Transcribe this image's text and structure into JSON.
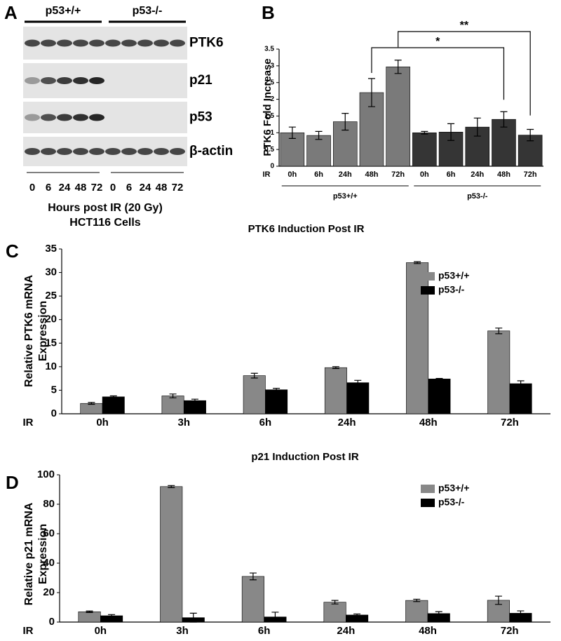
{
  "blot": {
    "panel_label": "A",
    "groups": [
      "p53+/+",
      "p53-/-"
    ],
    "rows": [
      "PTK6",
      "p21",
      "p53",
      "β-actin"
    ],
    "lanes": [
      "0",
      "6",
      "24",
      "48",
      "72",
      "0",
      "6",
      "24",
      "48",
      "72"
    ],
    "xlabel": "Hours post IR (20 Gy)",
    "caption": "HCT116 Cells"
  },
  "chart_data": [
    {
      "type": "bar",
      "panel_label": "B",
      "ylabel": "PTK6 Fold Increase",
      "xlabel": "IR",
      "categories": [
        "0h",
        "6h",
        "24h",
        "48h",
        "72h",
        "0h",
        "6h",
        "24h",
        "48h",
        "72h"
      ],
      "values": [
        1.0,
        0.92,
        1.33,
        2.2,
        2.97,
        1.0,
        1.02,
        1.17,
        1.4,
        0.93
      ],
      "errors": [
        0.17,
        0.12,
        0.25,
        0.42,
        0.2,
        0.04,
        0.25,
        0.27,
        0.23,
        0.17
      ],
      "groups": [
        {
          "name": "p53+/+",
          "color": "#7a7a7a"
        },
        {
          "name": "p53-/-",
          "color": "#353535"
        }
      ],
      "ylim": [
        0,
        3.5
      ],
      "yticks": [
        0,
        0.5,
        1,
        1.5,
        2,
        2.5,
        3,
        3.5
      ],
      "annotations": [
        {
          "text": "*",
          "between": [
            3,
            8
          ]
        },
        {
          "text": "**",
          "between": [
            4,
            9
          ]
        }
      ]
    },
    {
      "type": "bar",
      "panel_label": "C",
      "title": "PTK6 Induction Post IR",
      "ylabel": [
        "Relative PTK6 mRNA",
        "Expression"
      ],
      "xlabel": "IR",
      "categories": [
        "0h",
        "3h",
        "6h",
        "24h",
        "48h",
        "72h"
      ],
      "series": [
        {
          "name": "p53+/+",
          "color": "#888888",
          "values": [
            2.2,
            3.8,
            8.1,
            9.8,
            32.1,
            17.6
          ],
          "errors": [
            0.2,
            0.4,
            0.5,
            0.2,
            0.2,
            0.6
          ]
        },
        {
          "name": "p53-/-",
          "color": "#000000",
          "values": [
            3.6,
            2.8,
            5.1,
            6.6,
            7.4,
            6.4
          ],
          "errors": [
            0.2,
            0.3,
            0.3,
            0.5,
            0.1,
            0.6
          ]
        }
      ],
      "ylim": [
        0,
        35
      ],
      "yticks": [
        0,
        5,
        10,
        15,
        20,
        25,
        30,
        35
      ]
    },
    {
      "type": "bar",
      "panel_label": "D",
      "title": "p21 Induction Post IR",
      "ylabel": [
        "Relative p21 mRNA",
        "Expression"
      ],
      "xlabel": "IR",
      "categories": [
        "0h",
        "3h",
        "6h",
        "24h",
        "48h",
        "72h"
      ],
      "series": [
        {
          "name": "p53+/+",
          "color": "#888888",
          "values": [
            7,
            92,
            31,
            13.5,
            14.7,
            14.8
          ],
          "errors": [
            0.5,
            0.7,
            2.3,
            1.2,
            0.8,
            2.8
          ]
        },
        {
          "name": "p53-/-",
          "color": "#000000",
          "values": [
            4.3,
            3,
            3.5,
            4.8,
            5.8,
            6
          ],
          "errors": [
            0.8,
            3,
            3.2,
            0.7,
            1.3,
            1.6
          ]
        }
      ],
      "ylim": [
        0,
        100
      ],
      "yticks": [
        0,
        20,
        40,
        60,
        80,
        100
      ]
    }
  ]
}
